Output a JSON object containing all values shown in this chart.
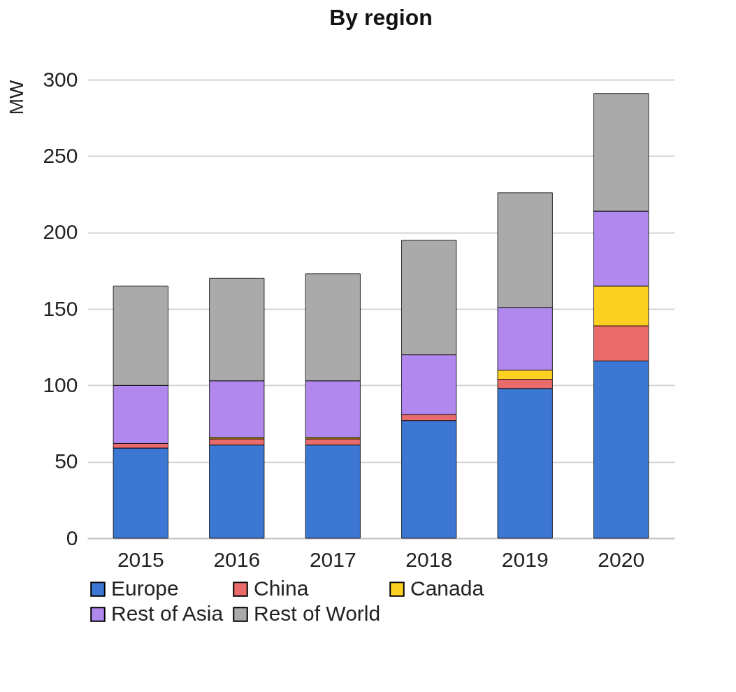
{
  "chart_data": {
    "type": "bar",
    "title": "By region",
    "ylabel": "MW",
    "stacked": true,
    "grid": "y",
    "legend": "bottom",
    "categories": [
      "2015",
      "2016",
      "2017",
      "2018",
      "2019",
      "2020"
    ],
    "ylim": [
      0,
      300
    ],
    "yticks": [
      0,
      50,
      100,
      150,
      200,
      250,
      300
    ],
    "series": [
      {
        "name": "Europe",
        "color": "#3c78d3",
        "values": [
          59,
          61,
          61,
          77,
          98,
          116
        ]
      },
      {
        "name": "China",
        "color": "#e96b6b",
        "values": [
          3,
          4,
          4,
          4,
          6,
          23
        ]
      },
      {
        "name": "Canada",
        "color": "#fcd121",
        "values": [
          null,
          1,
          1,
          null,
          6,
          26
        ]
      },
      {
        "name": "Rest of Asia",
        "color": "#b088ee",
        "values": [
          38,
          37,
          37,
          39,
          41,
          49
        ]
      },
      {
        "name": "Rest of World",
        "color": "#aaaaaa",
        "values": [
          65,
          67,
          70,
          75,
          75,
          77
        ]
      }
    ]
  }
}
